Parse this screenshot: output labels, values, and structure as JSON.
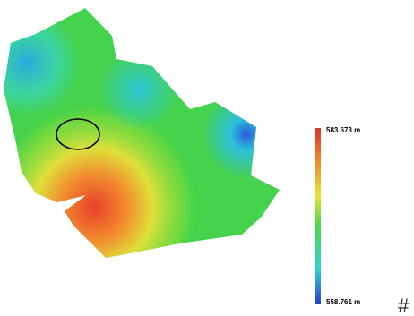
{
  "legend": {
    "max_label": "583.673 m",
    "min_label": "558.761 m"
  },
  "corner_mark": "#"
}
